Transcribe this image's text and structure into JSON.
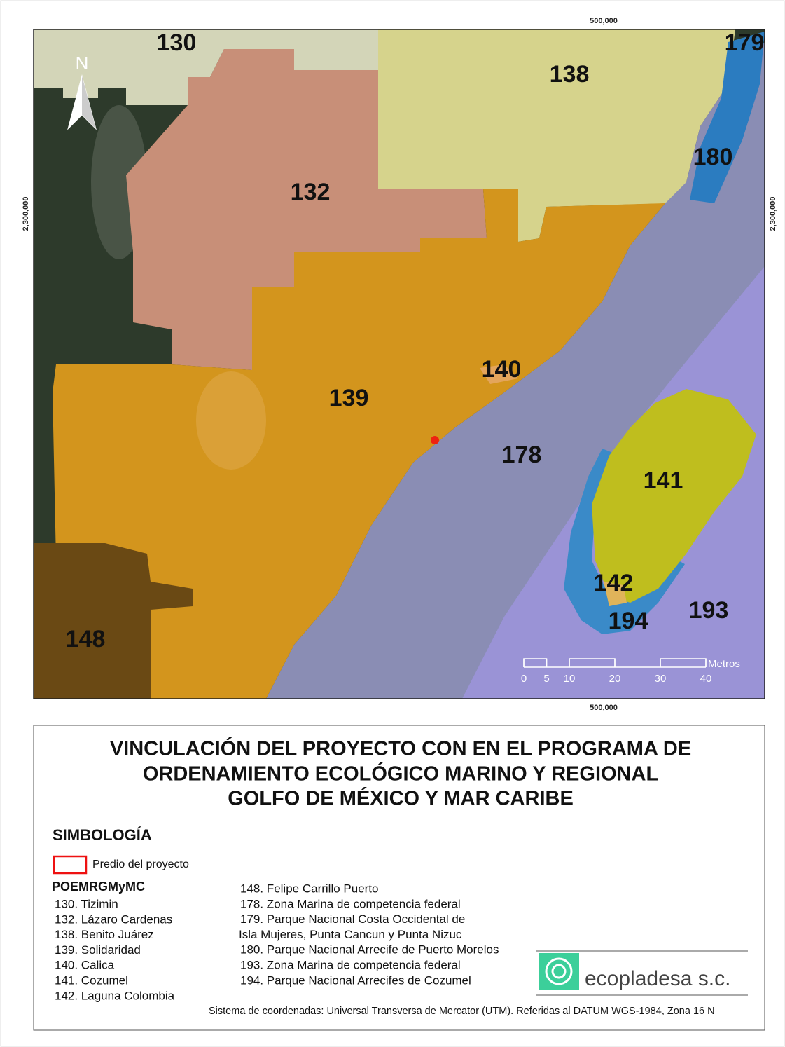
{
  "map": {
    "coordinates": {
      "top": "500,000",
      "bottom": "500,000",
      "left": "2,300,000",
      "right": "2,300,000"
    },
    "north": "N",
    "zones": [
      "130",
      "132",
      "138",
      "139",
      "140",
      "141",
      "142",
      "148",
      "178",
      "179",
      "180",
      "193",
      "194"
    ],
    "scale": {
      "ticks": [
        0,
        5,
        10,
        20,
        30,
        40
      ],
      "unit": "Metros"
    }
  },
  "legend": {
    "title": [
      "VINCULACIÓN DEL PROYECTO CON EN EL PROGRAMA DE",
      "ORDENAMIENTO ECOLÓGICO MARINO Y REGIONAL",
      "GOLFO DE MÉXICO Y MAR CARIBE"
    ],
    "heading": "SIMBOLOGÍA",
    "project": "Predio del proyecto",
    "group": "POEMRGMyMC",
    "items_left": [
      "130. Tizimin",
      "132. Lázaro Cardenas",
      "138. Benito Juárez",
      "139. Solidaridad",
      "140. Calica",
      "141. Cozumel",
      "142. Laguna Colombia"
    ],
    "items_right": [
      "148. Felipe Carrillo Puerto",
      "178. Zona Marina de competencia federal",
      "179. Parque Nacional Costa Occidental de",
      "Isla Mujeres, Punta Cancun y Punta Nizuc",
      "180. Parque Nacional Arrecife de Puerto Morelos",
      "193. Zona Marina de competencia federal",
      "194. Parque Nacional Arrecifes de Cozumel"
    ],
    "logo": "ecopladesa s.c.",
    "note": "Sistema de coordenadas: Universal Transversa de Mercator (UTM). Referidas al DATUM WGS-1984, Zona 16 N"
  }
}
